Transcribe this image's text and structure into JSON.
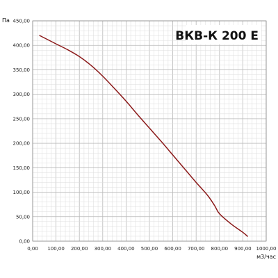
{
  "chart_data": {
    "type": "line",
    "title": "ВКВ-К 200 Е",
    "xlabel": "м3/час",
    "ylabel": "Па",
    "xlim": [
      0,
      1000
    ],
    "ylim": [
      0,
      450
    ],
    "xticks": [
      "0,00",
      "100,00",
      "200,00",
      "300,00",
      "400,00",
      "500,00",
      "600,00",
      "700,00",
      "800,00",
      "900,00",
      "1000,00"
    ],
    "yticks": [
      "0,00",
      "50,00",
      "100,00",
      "150,00",
      "200,00",
      "250,00",
      "300,00",
      "350,00",
      "400,00",
      "450,00"
    ],
    "grid": true,
    "line_color": "#8b1a1a",
    "series": [
      {
        "x": [
          30,
          100,
          150,
          200,
          250,
          300,
          350,
          400,
          450,
          500,
          550,
          600,
          650,
          700,
          750,
          780,
          800,
          850,
          900,
          920
        ],
        "values": [
          420,
          403,
          391,
          377,
          359,
          337,
          312,
          286,
          258,
          231,
          204,
          176,
          148,
          120,
          93,
          72,
          56,
          35,
          18,
          10
        ]
      }
    ]
  }
}
